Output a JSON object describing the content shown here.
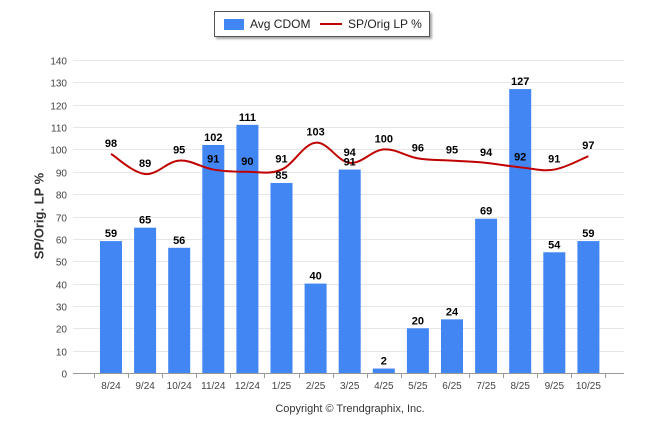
{
  "chart_data": {
    "type": "bar",
    "categories": [
      "8/24",
      "9/24",
      "10/24",
      "11/24",
      "12/24",
      "1/25",
      "2/25",
      "3/25",
      "4/25",
      "5/25",
      "6/25",
      "7/25",
      "8/25",
      "9/25",
      "10/25"
    ],
    "series": [
      {
        "name": "Avg CDOM",
        "kind": "bar",
        "color": "#4286f4",
        "values": [
          59,
          65,
          56,
          102,
          111,
          85,
          40,
          91,
          2,
          20,
          24,
          69,
          127,
          54,
          59
        ]
      },
      {
        "name": "SP/Orig LP %",
        "kind": "line",
        "color": "#c00000",
        "values": [
          98,
          89,
          95,
          91,
          90,
          91,
          103,
          94,
          100,
          96,
          95,
          94,
          92,
          91,
          97
        ]
      }
    ],
    "ylabel": "SP/Orig. LP %",
    "ylim": [
      0,
      140
    ],
    "yticks": [
      0,
      10,
      20,
      30,
      40,
      50,
      60,
      70,
      80,
      90,
      100,
      110,
      120,
      130,
      140
    ],
    "grid": true,
    "legend": "top-center"
  },
  "legend": {
    "bar_label": "Avg CDOM",
    "line_label": "SP/Orig LP %"
  },
  "footer": {
    "copyright": "Copyright © Trendgraphix, Inc."
  }
}
